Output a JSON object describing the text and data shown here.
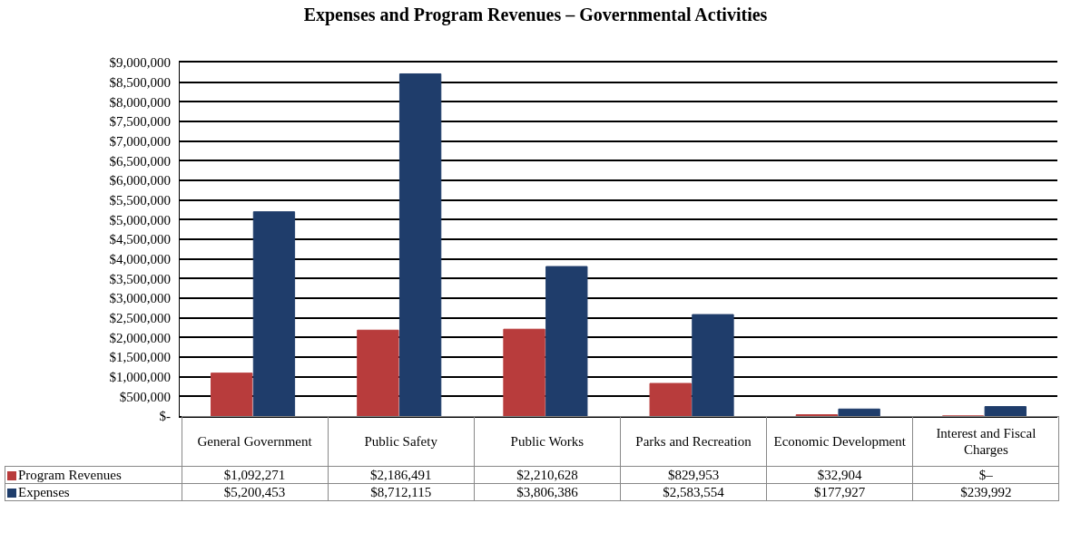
{
  "chart_data": {
    "type": "bar",
    "title": "Expenses and Program Revenues – Governmental Activities",
    "categories": [
      "General Government",
      "Public Safety",
      "Public Works",
      "Parks and Recreation",
      "Economic Development",
      "Interest and Fiscal Charges"
    ],
    "series": [
      {
        "name": "Program Revenues",
        "color": "#b83c3c",
        "values": [
          1092271,
          2186491,
          2210628,
          829953,
          32904,
          0
        ],
        "value_labels": [
          "$1,092,271",
          "$2,186,491",
          "$2,210,628",
          "$829,953",
          "$32,904",
          "$–"
        ]
      },
      {
        "name": "Expenses",
        "color": "#1f3d6b",
        "values": [
          5200453,
          8712115,
          3806386,
          2583554,
          177927,
          239992
        ],
        "value_labels": [
          "$5,200,453",
          "$8,712,115",
          "$3,806,386",
          "$2,583,554",
          "$177,927",
          "$239,992"
        ]
      }
    ],
    "ylim": [
      0,
      9000000
    ],
    "yticks": [
      {
        "value": 0,
        "label": "$-"
      },
      {
        "value": 500000,
        "label": "$500,000"
      },
      {
        "value": 1000000,
        "label": "$1,000,000"
      },
      {
        "value": 1500000,
        "label": "$1,500,000"
      },
      {
        "value": 2000000,
        "label": "$2,000,000"
      },
      {
        "value": 2500000,
        "label": "$2,500,000"
      },
      {
        "value": 3000000,
        "label": "$3,000,000"
      },
      {
        "value": 3500000,
        "label": "$3,500,000"
      },
      {
        "value": 4000000,
        "label": "$4,000,000"
      },
      {
        "value": 4500000,
        "label": "$4,500,000"
      },
      {
        "value": 5000000,
        "label": "$5,000,000"
      },
      {
        "value": 5500000,
        "label": "$5,500,000"
      },
      {
        "value": 6000000,
        "label": "$6,000,000"
      },
      {
        "value": 6500000,
        "label": "$6,500,000"
      },
      {
        "value": 7000000,
        "label": "$7,000,000"
      },
      {
        "value": 7500000,
        "label": "$7,500,000"
      },
      {
        "value": 8000000,
        "label": "$8,000,000"
      },
      {
        "value": 8500000,
        "label": "$8,500,000"
      },
      {
        "value": 9000000,
        "label": "$9,000,000"
      }
    ],
    "grid": "y",
    "legend": "bottom left"
  }
}
